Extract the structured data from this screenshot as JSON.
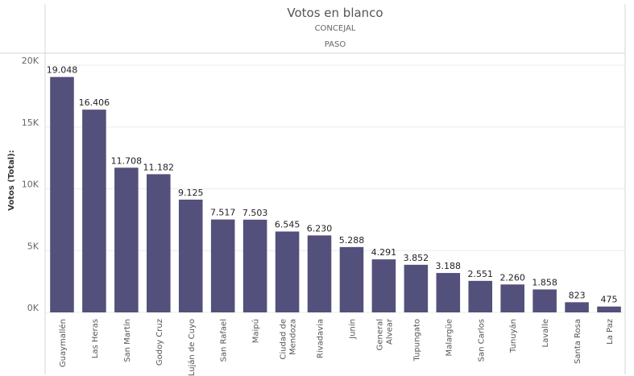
{
  "chart_data": {
    "type": "bar",
    "title": "Votos en blanco",
    "subtitle_lines": [
      "CONCEJAL",
      "PASO"
    ],
    "xlabel": "",
    "ylabel": "Votos (Total):",
    "ylim": [
      0,
      20000
    ],
    "yticks": [
      0,
      5000,
      10000,
      15000,
      20000
    ],
    "ytick_labels": [
      "0K",
      "5K",
      "10K",
      "15K",
      "20K"
    ],
    "grid": true,
    "color": "#53507c",
    "categories": [
      "Guaymallén",
      "Las Heras",
      "San Martín",
      "Godoy Cruz",
      "Luján de Cuyo",
      "San Rafael",
      "Maipú",
      "Ciudad de Mendoza",
      "Rivadavia",
      "Junín",
      "General Alvear",
      "Tupungato",
      "Malargüe",
      "San Carlos",
      "Tunuyán",
      "Lavalle",
      "Santa Rosa",
      "La Paz"
    ],
    "category_lines": [
      [
        "Guaymallén"
      ],
      [
        "Las Heras"
      ],
      [
        "San Martín"
      ],
      [
        "Godoy Cruz"
      ],
      [
        "Luján de Cuyo"
      ],
      [
        "San Rafael"
      ],
      [
        "Maipú"
      ],
      [
        "Ciudad de",
        "Mendoza"
      ],
      [
        "Rivadavia"
      ],
      [
        "Junín"
      ],
      [
        "General",
        "Alvear"
      ],
      [
        "Tupungato"
      ],
      [
        "Malargüe"
      ],
      [
        "San Carlos"
      ],
      [
        "Tunuyán"
      ],
      [
        "Lavalle"
      ],
      [
        "Santa Rosa"
      ],
      [
        "La Paz"
      ]
    ],
    "values": [
      19048,
      16406,
      11708,
      11182,
      9125,
      7517,
      7503,
      6545,
      6230,
      5288,
      4291,
      3852,
      3188,
      2551,
      2260,
      1858,
      823,
      475
    ],
    "value_labels": [
      "19.048",
      "16.406",
      "11.708",
      "11.182",
      "9.125",
      "7.517",
      "7.503",
      "6.545",
      "6.230",
      "5.288",
      "4.291",
      "3.852",
      "3.188",
      "2.551",
      "2.260",
      "1.858",
      "823",
      "475"
    ]
  }
}
